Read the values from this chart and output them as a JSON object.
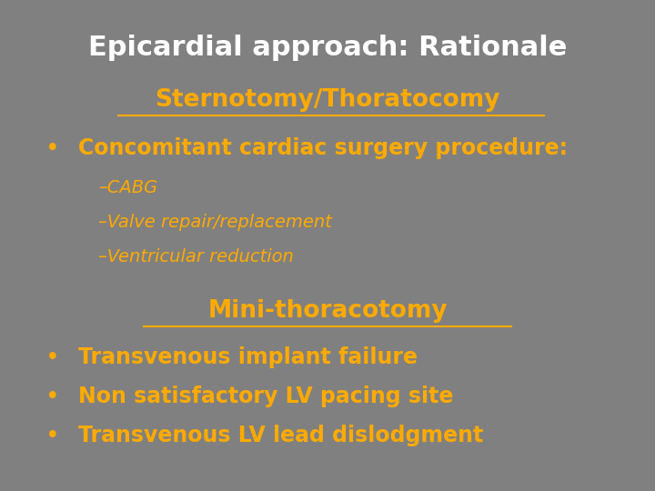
{
  "title": "Epicardial approach: Rationale",
  "title_color": "#ffffff",
  "title_fontsize": 22,
  "background_color": "#808080",
  "section1_text": "Sternotomy/Thoratocomy",
  "section1_color": "#ffaa00",
  "section1_fontsize": 19,
  "bullet1_text": "Concomitant cardiac surgery procedure:",
  "bullet1_color": "#ffaa00",
  "bullet1_fontsize": 17,
  "sub1_text": "–CABG",
  "sub2_text": "–Valve repair/replacement",
  "sub3_text": "–Ventricular reduction",
  "sub_color": "#ffaa00",
  "sub_fontsize": 14,
  "section2_text": "Mini-thoracotomy",
  "section2_color": "#ffaa00",
  "section2_fontsize": 19,
  "bullet2_text": "Transvenous implant failure",
  "bullet3_text": "Non satisfactory LV pacing site",
  "bullet4_text": "Transvenous LV lead dislodgment",
  "bullet_color": "#ffaa00",
  "bullet_fontsize": 17
}
